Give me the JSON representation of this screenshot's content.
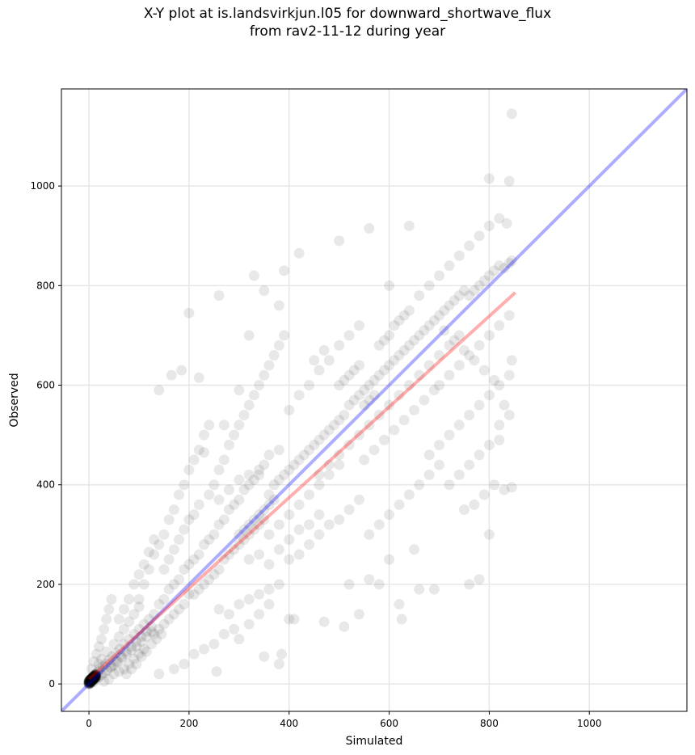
{
  "title_line1": "X-Y plot at is.landsvirkjun.l05 for downward_shortwave_flux",
  "title_line2": "from rav2-11-12 during year",
  "chart_data": {
    "type": "scatter",
    "title": "X-Y plot at is.landsvirkjun.l05 for downward_shortwave_flux\nfrom rav2-11-12 during year",
    "xlabel": "Simulated",
    "ylabel": "Observed",
    "xlim": [
      -55,
      1195
    ],
    "ylim": [
      -55,
      1195
    ],
    "xticks": [
      0,
      200,
      400,
      600,
      800,
      1000
    ],
    "yticks": [
      0,
      200,
      400,
      600,
      800,
      1000
    ],
    "grid": true,
    "lines": [
      {
        "kind": "one-to-one",
        "color": "#0000ff",
        "x": [
          -55,
          1195
        ],
        "y": [
          -55,
          1195
        ]
      },
      {
        "kind": "regression",
        "color": "#ff0000",
        "x": [
          0,
          852
        ],
        "y": [
          10,
          786
        ]
      }
    ],
    "points": [
      [
        0,
        2
      ],
      [
        1,
        5
      ],
      [
        2,
        8
      ],
      [
        3,
        1
      ],
      [
        4,
        10
      ],
      [
        5,
        6
      ],
      [
        6,
        12
      ],
      [
        8,
        3
      ],
      [
        10,
        15
      ],
      [
        12,
        9
      ],
      [
        14,
        20
      ],
      [
        16,
        11
      ],
      [
        18,
        25
      ],
      [
        20,
        14
      ],
      [
        22,
        30
      ],
      [
        25,
        18
      ],
      [
        28,
        35
      ],
      [
        30,
        22
      ],
      [
        33,
        40
      ],
      [
        36,
        27
      ],
      [
        40,
        48
      ],
      [
        43,
        33
      ],
      [
        46,
        55
      ],
      [
        50,
        38
      ],
      [
        54,
        62
      ],
      [
        58,
        45
      ],
      [
        62,
        70
      ],
      [
        66,
        52
      ],
      [
        70,
        80
      ],
      [
        75,
        60
      ],
      [
        80,
        90
      ],
      [
        85,
        68
      ],
      [
        90,
        100
      ],
      [
        95,
        75
      ],
      [
        100,
        110
      ],
      [
        105,
        85
      ],
      [
        110,
        120
      ],
      [
        115,
        95
      ],
      [
        120,
        130
      ],
      [
        125,
        105
      ],
      [
        5,
        30
      ],
      [
        10,
        45
      ],
      [
        15,
        60
      ],
      [
        20,
        75
      ],
      [
        25,
        90
      ],
      [
        30,
        110
      ],
      [
        35,
        130
      ],
      [
        40,
        150
      ],
      [
        45,
        170
      ],
      [
        30,
        5
      ],
      [
        40,
        10
      ],
      [
        50,
        20
      ],
      [
        60,
        25
      ],
      [
        70,
        30
      ],
      [
        80,
        40
      ],
      [
        90,
        50
      ],
      [
        100,
        60
      ],
      [
        110,
        70
      ],
      [
        130,
        140
      ],
      [
        140,
        160
      ],
      [
        150,
        170
      ],
      [
        160,
        190
      ],
      [
        170,
        200
      ],
      [
        180,
        210
      ],
      [
        190,
        230
      ],
      [
        200,
        240
      ],
      [
        130,
        100
      ],
      [
        140,
        110
      ],
      [
        150,
        120
      ],
      [
        160,
        130
      ],
      [
        170,
        140
      ],
      [
        180,
        150
      ],
      [
        190,
        160
      ],
      [
        200,
        180
      ],
      [
        100,
        170
      ],
      [
        110,
        200
      ],
      [
        120,
        230
      ],
      [
        130,
        260
      ],
      [
        140,
        280
      ],
      [
        150,
        300
      ],
      [
        160,
        330
      ],
      [
        170,
        350
      ],
      [
        180,
        380
      ],
      [
        190,
        400
      ],
      [
        200,
        430
      ],
      [
        210,
        450
      ],
      [
        220,
        470
      ],
      [
        230,
        500
      ],
      [
        240,
        520
      ],
      [
        210,
        250
      ],
      [
        220,
        260
      ],
      [
        230,
        280
      ],
      [
        240,
        290
      ],
      [
        250,
        300
      ],
      [
        260,
        320
      ],
      [
        270,
        330
      ],
      [
        280,
        350
      ],
      [
        290,
        360
      ],
      [
        300,
        370
      ],
      [
        310,
        390
      ],
      [
        320,
        400
      ],
      [
        330,
        410
      ],
      [
        340,
        420
      ],
      [
        350,
        440
      ],
      [
        210,
        180
      ],
      [
        220,
        190
      ],
      [
        230,
        200
      ],
      [
        240,
        210
      ],
      [
        250,
        220
      ],
      [
        260,
        230
      ],
      [
        270,
        250
      ],
      [
        280,
        260
      ],
      [
        290,
        270
      ],
      [
        300,
        280
      ],
      [
        310,
        290
      ],
      [
        320,
        300
      ],
      [
        330,
        310
      ],
      [
        340,
        320
      ],
      [
        350,
        330
      ],
      [
        250,
        400
      ],
      [
        260,
        430
      ],
      [
        270,
        450
      ],
      [
        280,
        480
      ],
      [
        290,
        500
      ],
      [
        300,
        520
      ],
      [
        310,
        540
      ],
      [
        320,
        560
      ],
      [
        330,
        580
      ],
      [
        340,
        600
      ],
      [
        350,
        620
      ],
      [
        360,
        640
      ],
      [
        370,
        660
      ],
      [
        380,
        680
      ],
      [
        390,
        700
      ],
      [
        260,
        150
      ],
      [
        280,
        140
      ],
      [
        300,
        160
      ],
      [
        320,
        170
      ],
      [
        340,
        180
      ],
      [
        360,
        190
      ],
      [
        380,
        200
      ],
      [
        400,
        130
      ],
      [
        360,
        380
      ],
      [
        370,
        400
      ],
      [
        380,
        410
      ],
      [
        390,
        420
      ],
      [
        400,
        430
      ],
      [
        410,
        440
      ],
      [
        420,
        450
      ],
      [
        430,
        460
      ],
      [
        440,
        470
      ],
      [
        450,
        480
      ],
      [
        460,
        490
      ],
      [
        470,
        500
      ],
      [
        480,
        510
      ],
      [
        490,
        520
      ],
      [
        500,
        530
      ],
      [
        360,
        300
      ],
      [
        380,
        320
      ],
      [
        400,
        340
      ],
      [
        420,
        360
      ],
      [
        440,
        380
      ],
      [
        460,
        400
      ],
      [
        480,
        420
      ],
      [
        500,
        440
      ],
      [
        400,
        550
      ],
      [
        420,
        580
      ],
      [
        440,
        600
      ],
      [
        460,
        630
      ],
      [
        480,
        650
      ],
      [
        500,
        680
      ],
      [
        520,
        700
      ],
      [
        540,
        720
      ],
      [
        400,
        250
      ],
      [
        420,
        260
      ],
      [
        440,
        280
      ],
      [
        460,
        300
      ],
      [
        480,
        320
      ],
      [
        500,
        330
      ],
      [
        520,
        350
      ],
      [
        540,
        370
      ],
      [
        510,
        540
      ],
      [
        520,
        560
      ],
      [
        530,
        570
      ],
      [
        540,
        580
      ],
      [
        550,
        590
      ],
      [
        560,
        600
      ],
      [
        570,
        610
      ],
      [
        580,
        620
      ],
      [
        590,
        630
      ],
      [
        600,
        640
      ],
      [
        610,
        650
      ],
      [
        620,
        660
      ],
      [
        630,
        670
      ],
      [
        640,
        680
      ],
      [
        650,
        690
      ],
      [
        550,
        450
      ],
      [
        570,
        470
      ],
      [
        590,
        490
      ],
      [
        610,
        510
      ],
      [
        630,
        530
      ],
      [
        650,
        550
      ],
      [
        670,
        570
      ],
      [
        690,
        590
      ],
      [
        560,
        300
      ],
      [
        580,
        320
      ],
      [
        600,
        340
      ],
      [
        620,
        360
      ],
      [
        640,
        380
      ],
      [
        660,
        400
      ],
      [
        680,
        420
      ],
      [
        700,
        440
      ],
      [
        660,
        700
      ],
      [
        670,
        710
      ],
      [
        680,
        720
      ],
      [
        690,
        730
      ],
      [
        700,
        740
      ],
      [
        710,
        750
      ],
      [
        720,
        760
      ],
      [
        730,
        770
      ],
      [
        740,
        780
      ],
      [
        750,
        790
      ],
      [
        760,
        780
      ],
      [
        770,
        790
      ],
      [
        780,
        800
      ],
      [
        790,
        810
      ],
      [
        800,
        820
      ],
      [
        810,
        830
      ],
      [
        820,
        840
      ],
      [
        830,
        835
      ],
      [
        840,
        845
      ],
      [
        845,
        850
      ],
      [
        700,
        600
      ],
      [
        720,
        620
      ],
      [
        740,
        640
      ],
      [
        760,
        660
      ],
      [
        780,
        680
      ],
      [
        800,
        700
      ],
      [
        820,
        720
      ],
      [
        840,
        740
      ],
      [
        720,
        500
      ],
      [
        740,
        520
      ],
      [
        760,
        540
      ],
      [
        780,
        560
      ],
      [
        800,
        580
      ],
      [
        820,
        600
      ],
      [
        840,
        620
      ],
      [
        845,
        650
      ],
      [
        750,
        350
      ],
      [
        770,
        360
      ],
      [
        790,
        380
      ],
      [
        800,
        300
      ],
      [
        810,
        400
      ],
      [
        830,
        390
      ],
      [
        845,
        395
      ],
      [
        820,
        490
      ],
      [
        640,
        750
      ],
      [
        660,
        780
      ],
      [
        680,
        800
      ],
      [
        700,
        820
      ],
      [
        720,
        840
      ],
      [
        740,
        860
      ],
      [
        760,
        880
      ],
      [
        780,
        900
      ],
      [
        800,
        920
      ],
      [
        820,
        935
      ],
      [
        835,
        925
      ],
      [
        200,
        745
      ],
      [
        165,
        620
      ],
      [
        185,
        630
      ],
      [
        140,
        590
      ],
      [
        330,
        820
      ],
      [
        390,
        830
      ],
      [
        420,
        865
      ],
      [
        560,
        915
      ],
      [
        350,
        790
      ],
      [
        500,
        890
      ],
      [
        600,
        800
      ],
      [
        640,
        920
      ],
      [
        800,
        1015
      ],
      [
        840,
        1010
      ],
      [
        845,
        1145
      ],
      [
        220,
        615
      ],
      [
        260,
        780
      ],
      [
        230,
        465
      ],
      [
        270,
        520
      ],
      [
        300,
        590
      ],
      [
        320,
        700
      ],
      [
        380,
        760
      ],
      [
        255,
        25
      ],
      [
        380,
        40
      ],
      [
        385,
        60
      ],
      [
        350,
        55
      ],
      [
        410,
        130
      ],
      [
        470,
        125
      ],
      [
        510,
        115
      ],
      [
        520,
        200
      ],
      [
        540,
        140
      ],
      [
        580,
        200
      ],
      [
        620,
        160
      ],
      [
        625,
        130
      ],
      [
        660,
        190
      ],
      [
        690,
        190
      ],
      [
        760,
        200
      ],
      [
        780,
        210
      ],
      [
        140,
        20
      ],
      [
        170,
        30
      ],
      [
        190,
        40
      ],
      [
        210,
        60
      ],
      [
        230,
        70
      ],
      [
        250,
        80
      ],
      [
        270,
        100
      ],
      [
        290,
        110
      ],
      [
        300,
        90
      ],
      [
        320,
        120
      ],
      [
        340,
        140
      ],
      [
        360,
        160
      ],
      [
        560,
        210
      ],
      [
        600,
        250
      ],
      [
        650,
        270
      ],
      [
        460,
        420
      ],
      [
        480,
        440
      ],
      [
        500,
        460
      ],
      [
        520,
        480
      ],
      [
        540,
        500
      ],
      [
        560,
        520
      ],
      [
        580,
        540
      ],
      [
        600,
        560
      ],
      [
        620,
        580
      ],
      [
        640,
        600
      ],
      [
        660,
        620
      ],
      [
        680,
        640
      ],
      [
        700,
        660
      ],
      [
        720,
        680
      ],
      [
        740,
        700
      ],
      [
        50,
        80
      ],
      [
        60,
        95
      ],
      [
        70,
        110
      ],
      [
        80,
        125
      ],
      [
        90,
        140
      ],
      [
        100,
        155
      ],
      [
        20,
        40
      ],
      [
        25,
        50
      ],
      [
        35,
        65
      ],
      [
        45,
        35
      ],
      [
        55,
        45
      ],
      [
        65,
        55
      ],
      [
        75,
        65
      ],
      [
        85,
        75
      ],
      [
        95,
        85
      ],
      [
        105,
        95
      ],
      [
        115,
        105
      ],
      [
        125,
        115
      ],
      [
        75,
        20
      ],
      [
        85,
        30
      ],
      [
        95,
        40
      ],
      [
        105,
        55
      ],
      [
        115,
        65
      ],
      [
        125,
        80
      ],
      [
        135,
        90
      ],
      [
        145,
        100
      ],
      [
        60,
        130
      ],
      [
        70,
        150
      ],
      [
        80,
        170
      ],
      [
        90,
        200
      ],
      [
        100,
        220
      ],
      [
        110,
        240
      ],
      [
        120,
        265
      ],
      [
        130,
        290
      ],
      [
        150,
        230
      ],
      [
        160,
        250
      ],
      [
        170,
        270
      ],
      [
        180,
        290
      ],
      [
        190,
        310
      ],
      [
        200,
        330
      ],
      [
        210,
        340
      ],
      [
        220,
        360
      ],
      [
        240,
        380
      ],
      [
        260,
        370
      ],
      [
        280,
        390
      ],
      [
        300,
        410
      ],
      [
        320,
        420
      ],
      [
        340,
        430
      ],
      [
        360,
        460
      ],
      [
        380,
        470
      ],
      [
        320,
        250
      ],
      [
        340,
        260
      ],
      [
        360,
        240
      ],
      [
        380,
        270
      ],
      [
        400,
        290
      ],
      [
        420,
        310
      ],
      [
        440,
        320
      ],
      [
        460,
        340
      ],
      [
        300,
        300
      ],
      [
        310,
        310
      ],
      [
        320,
        320
      ],
      [
        330,
        330
      ],
      [
        340,
        340
      ],
      [
        350,
        350
      ],
      [
        360,
        360
      ],
      [
        370,
        370
      ],
      [
        500,
        600
      ],
      [
        510,
        610
      ],
      [
        520,
        620
      ],
      [
        530,
        630
      ],
      [
        540,
        640
      ],
      [
        550,
        560
      ],
      [
        560,
        570
      ],
      [
        570,
        580
      ],
      [
        600,
        700
      ],
      [
        610,
        720
      ],
      [
        620,
        730
      ],
      [
        630,
        740
      ],
      [
        580,
        680
      ],
      [
        590,
        690
      ],
      [
        450,
        650
      ],
      [
        470,
        670
      ],
      [
        680,
        460
      ],
      [
        700,
        480
      ],
      [
        720,
        400
      ],
      [
        740,
        420
      ],
      [
        760,
        440
      ],
      [
        780,
        460
      ],
      [
        800,
        480
      ],
      [
        820,
        520
      ],
      [
        840,
        540
      ],
      [
        830,
        560
      ],
      [
        810,
        610
      ],
      [
        790,
        630
      ],
      [
        770,
        650
      ],
      [
        750,
        670
      ],
      [
        730,
        690
      ],
      [
        710,
        710
      ]
    ]
  }
}
